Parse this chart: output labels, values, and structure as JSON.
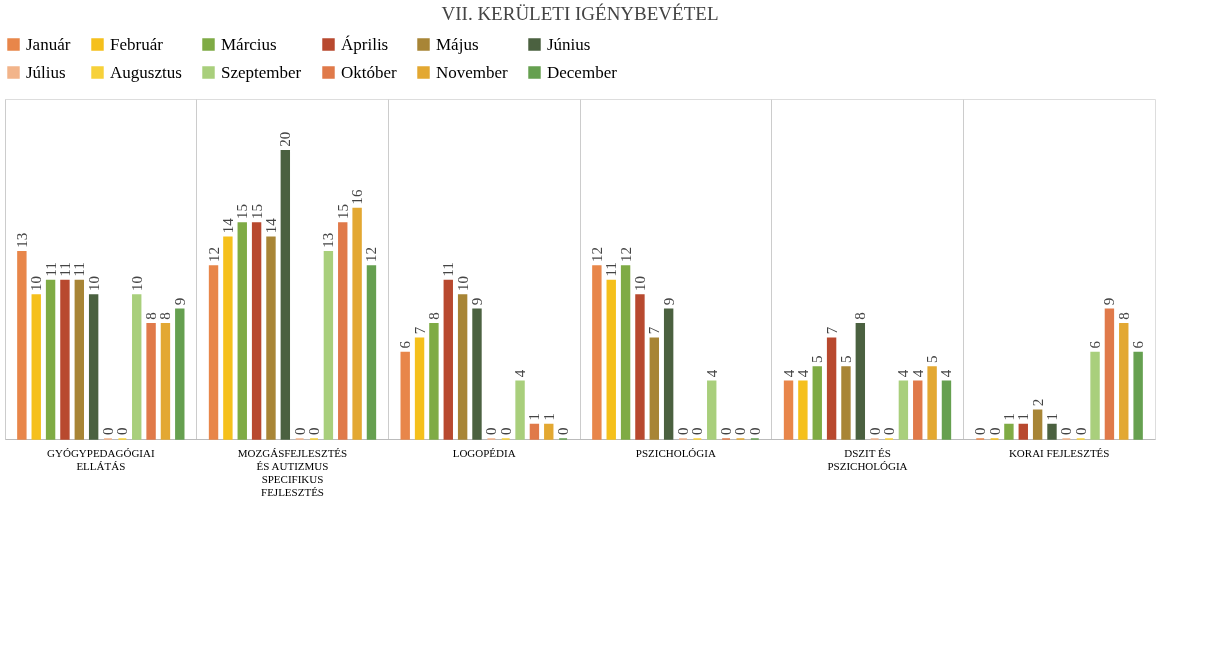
{
  "chart_data": {
    "type": "bar",
    "title": "VII. KERÜLETI IGÉNYBEVÉTEL",
    "categories": [
      "GYÓGYPEDAGÓGIAI ELLÁTÁS",
      "MOZGÁSFEJLESZTÉS ÉS AUTIZMUS SPECIFIKUS FEJLESZTÉS",
      "LOGOPÉDIA",
      "PSZICHOLÓGIA",
      "DSZIT ÉS PSZICHOLÓGIA",
      "KORAI FEJLESZTÉS"
    ],
    "series": [
      {
        "name": "Január",
        "color": "#e8864a",
        "values": [
          13,
          12,
          6,
          12,
          4,
          0
        ]
      },
      {
        "name": "Február",
        "color": "#f5c01c",
        "values": [
          10,
          14,
          7,
          11,
          4,
          0
        ]
      },
      {
        "name": "Március",
        "color": "#7fab45",
        "values": [
          11,
          15,
          8,
          12,
          5,
          1
        ]
      },
      {
        "name": "Április",
        "color": "#b8492f",
        "values": [
          11,
          15,
          11,
          10,
          7,
          1
        ]
      },
      {
        "name": "Május",
        "color": "#a88536",
        "values": [
          11,
          14,
          10,
          7,
          5,
          2
        ]
      },
      {
        "name": "Június",
        "color": "#4b6140",
        "values": [
          10,
          20,
          9,
          9,
          8,
          1
        ]
      },
      {
        "name": "Július",
        "color": "#f2b48a",
        "values": [
          0,
          0,
          0,
          0,
          0,
          0
        ]
      },
      {
        "name": "Augusztus",
        "color": "#f7d13a",
        "values": [
          0,
          0,
          0,
          0,
          0,
          0
        ]
      },
      {
        "name": "Szeptember",
        "color": "#a9cf7c",
        "values": [
          10,
          13,
          4,
          4,
          4,
          6
        ]
      },
      {
        "name": "Október",
        "color": "#e07a4a",
        "values": [
          8,
          15,
          1,
          0,
          4,
          9
        ]
      },
      {
        "name": "November",
        "color": "#e3a832",
        "values": [
          8,
          16,
          1,
          0,
          5,
          8
        ]
      },
      {
        "name": "December",
        "color": "#66a050",
        "values": [
          9,
          12,
          0,
          0,
          4,
          6
        ]
      }
    ],
    "data_labels": true,
    "legend": "top",
    "grid": "x"
  }
}
